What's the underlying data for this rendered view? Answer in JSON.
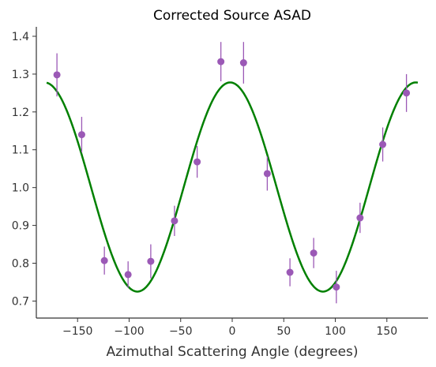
{
  "chart_data": {
    "type": "scatter",
    "title": "Corrected Source ASAD",
    "xlabel": "Azimuthal Scattering Angle (degrees)",
    "ylabel": "",
    "xlim": [
      -190,
      190
    ],
    "ylim": [
      0.655,
      1.425
    ],
    "xticks": [
      -150,
      -100,
      -50,
      0,
      50,
      100,
      150
    ],
    "xtick_labels": [
      "−150",
      "−100",
      "−50",
      "0",
      "50",
      "100",
      "150"
    ],
    "yticks": [
      0.7,
      0.8,
      0.9,
      1.0,
      1.1,
      1.2,
      1.3,
      1.4
    ],
    "ytick_labels": [
      "0.7",
      "0.8",
      "0.9",
      "1.0",
      "1.1",
      "1.2",
      "1.3",
      "1.4"
    ],
    "grid": false,
    "series": [
      {
        "kind": "points-with-errorbars",
        "color": "#9b59b6",
        "x": [
          -170,
          -146,
          -124,
          -101,
          -79,
          -56,
          -34,
          -11,
          11,
          34,
          56,
          79,
          101,
          124,
          146,
          169
        ],
        "y": [
          1.298,
          1.14,
          0.807,
          0.77,
          0.805,
          0.912,
          1.068,
          1.333,
          1.33,
          1.037,
          0.776,
          0.827,
          0.737,
          0.92,
          1.114,
          1.25
        ],
        "yerr": [
          0.057,
          0.047,
          0.037,
          0.035,
          0.045,
          0.04,
          0.042,
          0.052,
          0.055,
          0.045,
          0.037,
          0.04,
          0.043,
          0.04,
          0.045,
          0.05
        ]
      },
      {
        "kind": "fit-curve",
        "color": "#008000",
        "function": "offset + amplitude * cos(2 * (x - phase))",
        "offset": 1.0015,
        "amplitude": 0.2765,
        "phase": -2,
        "xrange": [
          -180,
          180
        ]
      }
    ]
  }
}
